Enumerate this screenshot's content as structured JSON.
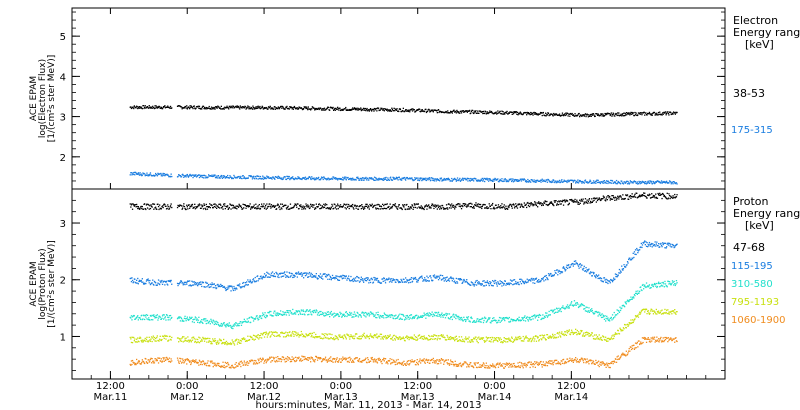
{
  "chart_data": [
    {
      "type": "scatter",
      "title": "",
      "ylabel": [
        "ACE EPAM",
        "log(Electron Flux)",
        "[1/(cm²s ster MeV)]"
      ],
      "ylim": [
        1.2,
        5.7
      ],
      "yticks": [
        2,
        3,
        4,
        5
      ],
      "legend_title": [
        "Electron",
        "Energy range",
        "[keV]"
      ],
      "series": [
        {
          "name": "38-53",
          "color": "#000000",
          "x_start_hr": 3,
          "x_end_hr": 88.5,
          "values": [
            3.25,
            3.25,
            3.24,
            3.24,
            3.22,
            3.2,
            3.18,
            3.14,
            3.12,
            3.08,
            3.05,
            3.08,
            3.1
          ]
        },
        {
          "name": "175-315",
          "color": "#1a7de0",
          "x_start_hr": 3,
          "x_end_hr": 88.5,
          "values": [
            1.6,
            1.55,
            1.52,
            1.5,
            1.48,
            1.47,
            1.47,
            1.45,
            1.44,
            1.42,
            1.4,
            1.38,
            1.38
          ]
        }
      ]
    },
    {
      "type": "scatter",
      "title": "",
      "ylabel": [
        "ACE EPAM",
        "log(Proton Flux)",
        "[1/(cm²s ster MeV)]"
      ],
      "ylim": [
        0.25,
        3.6
      ],
      "yticks": [
        1,
        2,
        3
      ],
      "legend_title": [
        "Proton",
        "Energy range",
        "[keV]"
      ],
      "series": [
        {
          "name": "47-68",
          "color": "#000000",
          "x_start_hr": 3,
          "x_end_hr": 88.5,
          "values": [
            3.3,
            3.3,
            3.3,
            3.3,
            3.3,
            3.3,
            3.3,
            3.3,
            3.3,
            3.3,
            3.32,
            3.3,
            3.35,
            3.38,
            3.45,
            3.5,
            3.48
          ]
        },
        {
          "name": "115-195",
          "color": "#1a7de0",
          "x_start_hr": 3,
          "x_end_hr": 88.5,
          "values": [
            2.0,
            1.95,
            1.95,
            1.85,
            2.1,
            2.1,
            2.05,
            2.0,
            2.0,
            2.05,
            1.95,
            1.95,
            2.0,
            2.3,
            1.95,
            2.65,
            2.6
          ]
        },
        {
          "name": "310-580",
          "color": "#22e0cc",
          "x_start_hr": 3,
          "x_end_hr": 88.5,
          "values": [
            1.35,
            1.35,
            1.3,
            1.2,
            1.4,
            1.45,
            1.4,
            1.4,
            1.35,
            1.4,
            1.3,
            1.3,
            1.35,
            1.6,
            1.3,
            1.9,
            1.95
          ]
        },
        {
          "name": "795-1193",
          "color": "#c8e010",
          "x_start_hr": 3,
          "x_end_hr": 88.5,
          "values": [
            0.95,
            0.98,
            0.95,
            0.9,
            1.05,
            1.05,
            1.0,
            1.02,
            0.98,
            1.0,
            0.95,
            0.95,
            0.98,
            1.1,
            0.95,
            1.45,
            1.45
          ]
        },
        {
          "name": "1060-1900",
          "color": "#f08c1e",
          "x_start_hr": 3,
          "x_end_hr": 88.5,
          "values": [
            0.55,
            0.6,
            0.55,
            0.5,
            0.6,
            0.62,
            0.6,
            0.6,
            0.55,
            0.58,
            0.5,
            0.5,
            0.52,
            0.6,
            0.5,
            0.95,
            0.95
          ]
        }
      ]
    }
  ],
  "x_axis": {
    "range_hr": [
      -6,
      96
    ],
    "ticks": [
      {
        "hr": 0,
        "time": "12:00",
        "date": "Mar.11"
      },
      {
        "hr": 12,
        "time": "0:00",
        "date": "Mar.12"
      },
      {
        "hr": 24,
        "time": "12:00",
        "date": "Mar.12"
      },
      {
        "hr": 36,
        "time": "0:00",
        "date": "Mar.13"
      },
      {
        "hr": 48,
        "time": "12:00",
        "date": "Mar.13"
      },
      {
        "hr": 60,
        "time": "0:00",
        "date": "Mar.14"
      },
      {
        "hr": 72,
        "time": "12:00",
        "date": "Mar.14"
      }
    ],
    "label": "hours:minutes, Mar. 11, 2013 - Mar. 14, 2013"
  }
}
